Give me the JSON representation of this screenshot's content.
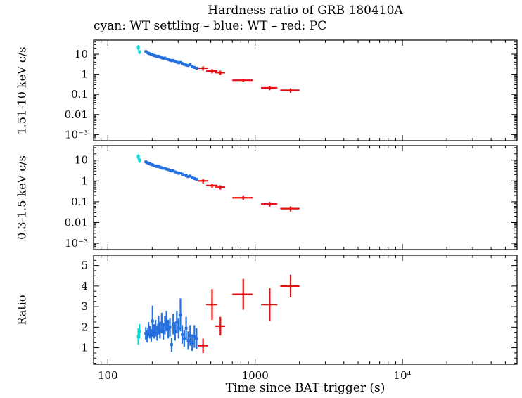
{
  "title": "Hardness ratio of GRB 180410A",
  "subtitle": "cyan: WT settling – blue: WT – red: PC",
  "xlabel": "Time since BAT trigger (s)",
  "colors": {
    "cyan": "#00dedd",
    "blue": "#2470e0",
    "red": "#e41010"
  },
  "xaxis": {
    "scale": "log",
    "lim": [
      80,
      60000
    ],
    "major": [
      {
        "v": 100,
        "label": "100"
      },
      {
        "v": 1000,
        "label": "1000"
      },
      {
        "v": 10000,
        "label": "10⁴"
      }
    ]
  },
  "chart_data": [
    {
      "type": "scatter",
      "ylabel": "1.51-10 keV c/s",
      "yscale": "log",
      "ylim": [
        0.0005,
        50
      ],
      "yticks": [
        {
          "v": 10,
          "label": "10"
        },
        {
          "v": 1,
          "label": "1"
        },
        {
          "v": 0.1,
          "label": "0.1"
        },
        {
          "v": 0.01,
          "label": "0.01"
        },
        {
          "v": 0.001,
          "label": "10⁻³"
        }
      ],
      "series": [
        {
          "name": "WT settling",
          "color": "cyan",
          "marker_size": 4,
          "points": [
            [
              161,
              0,
              22,
              6
            ],
            [
              164,
              0,
              13,
              3
            ]
          ]
        },
        {
          "name": "WT",
          "color": "blue",
          "marker_size": 4,
          "points": [
            [
              181,
              2,
              13.5,
              1.4
            ],
            [
              185,
              2,
              12.0,
              1.2
            ],
            [
              189,
              2,
              11.0,
              1.1
            ],
            [
              193,
              2,
              10.4,
              1.1
            ],
            [
              197,
              2,
              9.7,
              1.0
            ],
            [
              201,
              2,
              9.1,
              0.9
            ],
            [
              206,
              2,
              8.6,
              0.9
            ],
            [
              211,
              2,
              8.1,
              0.8
            ],
            [
              216,
              3,
              7.6,
              0.8
            ],
            [
              221,
              3,
              7.9,
              0.8
            ],
            [
              226,
              3,
              7.1,
              0.7
            ],
            [
              232,
              3,
              6.6,
              0.7
            ],
            [
              238,
              3,
              6.2,
              0.7
            ],
            [
              244,
              3,
              6.4,
              0.7
            ],
            [
              250,
              3,
              5.8,
              0.6
            ],
            [
              257,
              3,
              5.4,
              0.6
            ],
            [
              264,
              3,
              5.0,
              0.6
            ],
            [
              271,
              3,
              4.7,
              0.5
            ],
            [
              278,
              3,
              4.9,
              0.5
            ],
            [
              286,
              4,
              4.3,
              0.5
            ],
            [
              294,
              4,
              4.0,
              0.5
            ],
            [
              302,
              4,
              3.7,
              0.4
            ],
            [
              311,
              4,
              3.9,
              0.4
            ],
            [
              320,
              4,
              3.4,
              0.4
            ],
            [
              330,
              4,
              3.1,
              0.4
            ],
            [
              340,
              5,
              2.9,
              0.4
            ],
            [
              351,
              5,
              2.7,
              0.3
            ],
            [
              362,
              5,
              3.0,
              0.4
            ],
            [
              374,
              5,
              2.4,
              0.3
            ],
            [
              387,
              6,
              2.2,
              0.3
            ],
            [
              400,
              6,
              2.0,
              0.3
            ]
          ]
        },
        {
          "name": "PC",
          "color": "red",
          "marker_size": 3,
          "points": [
            [
              443,
              35,
              2.0,
              0.5
            ],
            [
              510,
              45,
              1.45,
              0.35
            ],
            [
              581,
              45,
              1.2,
              0.3
            ],
            [
              830,
              130,
              0.5,
              0.1
            ],
            [
              1256,
              160,
              0.21,
              0.05
            ],
            [
              1740,
              260,
              0.16,
              0.04
            ]
          ]
        }
      ]
    },
    {
      "type": "scatter",
      "ylabel": "0.3-1.5 keV c/s",
      "yscale": "log",
      "ylim": [
        0.0005,
        50
      ],
      "yticks": [
        {
          "v": 10,
          "label": "10"
        },
        {
          "v": 1,
          "label": "1"
        },
        {
          "v": 0.1,
          "label": "0.1"
        },
        {
          "v": 0.01,
          "label": "0.01"
        },
        {
          "v": 0.001,
          "label": "10⁻³"
        }
      ],
      "series": [
        {
          "name": "WT settling",
          "color": "cyan",
          "marker_size": 4,
          "points": [
            [
              161,
              0,
              15,
              4
            ],
            [
              164,
              0,
              10,
              2.5
            ]
          ]
        },
        {
          "name": "WT",
          "color": "blue",
          "marker_size": 4,
          "points": [
            [
              181,
              2,
              8.2,
              0.9
            ],
            [
              185,
              2,
              7.5,
              0.8
            ],
            [
              189,
              2,
              7.0,
              0.8
            ],
            [
              193,
              2,
              6.6,
              0.7
            ],
            [
              197,
              2,
              6.2,
              0.7
            ],
            [
              201,
              2,
              5.9,
              0.6
            ],
            [
              206,
              2,
              5.5,
              0.6
            ],
            [
              211,
              2,
              5.2,
              0.6
            ],
            [
              216,
              3,
              4.9,
              0.5
            ],
            [
              221,
              3,
              5.1,
              0.5
            ],
            [
              226,
              3,
              4.6,
              0.5
            ],
            [
              232,
              3,
              4.3,
              0.5
            ],
            [
              238,
              3,
              4.0,
              0.4
            ],
            [
              244,
              3,
              4.1,
              0.4
            ],
            [
              250,
              3,
              3.7,
              0.4
            ],
            [
              257,
              3,
              3.5,
              0.4
            ],
            [
              264,
              3,
              3.2,
              0.4
            ],
            [
              271,
              3,
              3.0,
              0.3
            ],
            [
              278,
              3,
              3.1,
              0.3
            ],
            [
              286,
              4,
              2.7,
              0.3
            ],
            [
              294,
              4,
              2.5,
              0.3
            ],
            [
              302,
              4,
              2.3,
              0.3
            ],
            [
              311,
              4,
              2.4,
              0.3
            ],
            [
              320,
              4,
              2.1,
              0.3
            ],
            [
              330,
              4,
              1.9,
              0.25
            ],
            [
              340,
              5,
              1.8,
              0.25
            ],
            [
              351,
              5,
              1.6,
              0.2
            ],
            [
              362,
              5,
              1.7,
              0.2
            ],
            [
              374,
              5,
              1.4,
              0.2
            ],
            [
              387,
              6,
              1.3,
              0.2
            ],
            [
              400,
              6,
              1.2,
              0.2
            ]
          ]
        },
        {
          "name": "PC",
          "color": "red",
          "marker_size": 3,
          "points": [
            [
              443,
              35,
              1.0,
              0.25
            ],
            [
              510,
              45,
              0.6,
              0.15
            ],
            [
              581,
              45,
              0.5,
              0.12
            ],
            [
              830,
              130,
              0.155,
              0.035
            ],
            [
              1256,
              160,
              0.078,
              0.02
            ],
            [
              1740,
              260,
              0.047,
              0.013
            ]
          ]
        }
      ]
    },
    {
      "type": "scatter",
      "ylabel": "Ratio",
      "yscale": "linear",
      "ylim": [
        0.2,
        5.5
      ],
      "yticks": [
        {
          "v": 1,
          "label": "1"
        },
        {
          "v": 2,
          "label": "2"
        },
        {
          "v": 3,
          "label": "3"
        },
        {
          "v": 4,
          "label": "4"
        },
        {
          "v": 5,
          "label": "5"
        }
      ],
      "series": [
        {
          "name": "WT settling",
          "color": "cyan",
          "marker_size": 4,
          "points": [
            [
              161,
              0,
              1.55,
              0.4
            ],
            [
              164,
              0,
              1.8,
              0.35
            ]
          ]
        },
        {
          "name": "WT",
          "color": "blue",
          "marker_size": 4,
          "points": [
            [
              181,
              2,
              1.7,
              0.3
            ],
            [
              185,
              2,
              1.55,
              0.3
            ],
            [
              189,
              2,
              1.9,
              0.35
            ],
            [
              193,
              2,
              1.75,
              0.3
            ],
            [
              197,
              2,
              1.6,
              0.3
            ],
            [
              201,
              2,
              2.3,
              0.75
            ],
            [
              206,
              2,
              1.8,
              0.35
            ],
            [
              211,
              2,
              1.95,
              0.4
            ],
            [
              216,
              3,
              1.7,
              0.35
            ],
            [
              221,
              3,
              2.1,
              0.45
            ],
            [
              226,
              3,
              1.85,
              0.4
            ],
            [
              232,
              3,
              2.2,
              0.5
            ],
            [
              238,
              3,
              1.8,
              0.4
            ],
            [
              244,
              3,
              2.1,
              0.45
            ],
            [
              250,
              3,
              2.3,
              0.5
            ],
            [
              257,
              3,
              1.9,
              0.45
            ],
            [
              264,
              3,
              2.0,
              0.45
            ],
            [
              271,
              3,
              1.15,
              0.35
            ],
            [
              278,
              3,
              2.15,
              0.5
            ],
            [
              286,
              4,
              1.8,
              0.45
            ],
            [
              294,
              4,
              2.25,
              0.55
            ],
            [
              302,
              4,
              1.95,
              0.5
            ],
            [
              311,
              4,
              2.6,
              0.8
            ],
            [
              320,
              4,
              1.65,
              0.45
            ],
            [
              330,
              4,
              1.45,
              0.4
            ],
            [
              340,
              5,
              1.95,
              0.55
            ],
            [
              351,
              5,
              1.35,
              0.45
            ],
            [
              362,
              5,
              1.6,
              0.5
            ],
            [
              374,
              5,
              1.25,
              0.4
            ],
            [
              387,
              6,
              1.55,
              0.55
            ],
            [
              400,
              6,
              1.45,
              0.5
            ]
          ]
        },
        {
          "name": "PC",
          "color": "red",
          "marker_size": 3,
          "points": [
            [
              443,
              35,
              1.1,
              0.35
            ],
            [
              510,
              45,
              3.1,
              0.75
            ],
            [
              581,
              45,
              2.05,
              0.45
            ],
            [
              830,
              130,
              3.6,
              0.75
            ],
            [
              1256,
              160,
              3.1,
              0.8
            ],
            [
              1740,
              260,
              4.0,
              0.55
            ]
          ]
        }
      ]
    }
  ]
}
